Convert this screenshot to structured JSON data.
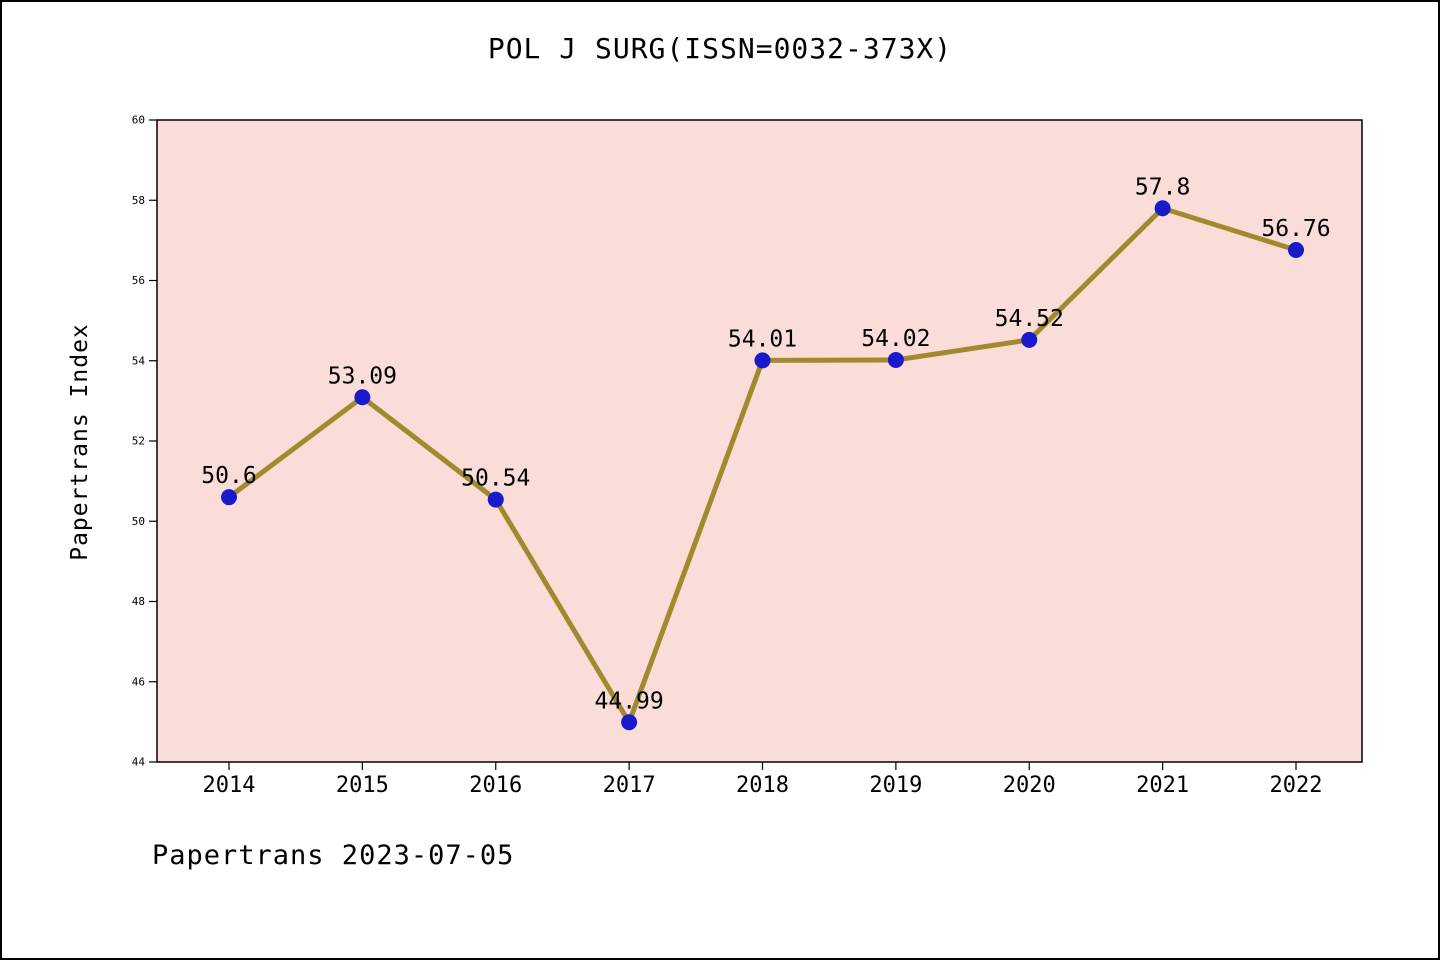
{
  "page": {
    "footer": "Papertrans 2023-07-05"
  },
  "chart_data": {
    "type": "line",
    "title": "POL J SURG(ISSN=0032-373X)",
    "x": [
      "2014",
      "2015",
      "2016",
      "2017",
      "2018",
      "2019",
      "2020",
      "2021",
      "2022"
    ],
    "values": [
      50.6,
      53.09,
      50.54,
      44.99,
      54.01,
      54.02,
      54.52,
      57.8,
      56.76
    ],
    "point_labels": [
      "50.6",
      "53.09",
      "50.54",
      "44.99",
      "54.01",
      "54.02",
      "54.52",
      "57.8",
      "56.76"
    ],
    "xlabel": "",
    "ylabel": "Papertrans Index",
    "ylim": [
      44,
      60
    ],
    "yticks": [
      44,
      46,
      48,
      50,
      52,
      54,
      56,
      58,
      60
    ],
    "grid": false,
    "legend": null,
    "colors": {
      "line": "#a08a2e",
      "marker": "#1a1acd",
      "plot_background": "#fadcd8",
      "axis": "#000000",
      "label_text": "#000000"
    }
  }
}
